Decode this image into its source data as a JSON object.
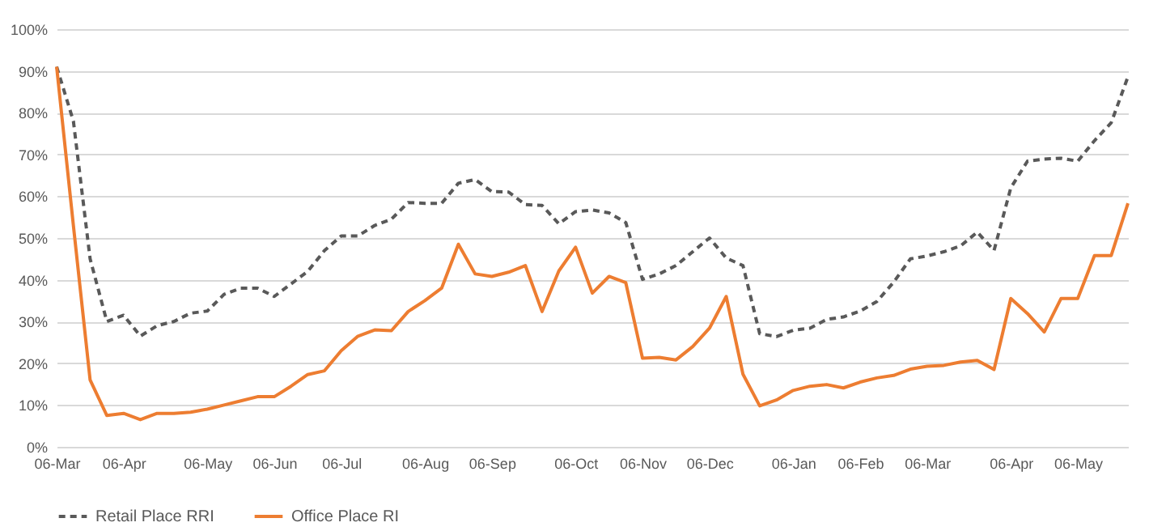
{
  "chart_data": {
    "type": "line",
    "categories": [
      "06-Mar",
      null,
      null,
      null,
      "06-Apr",
      null,
      null,
      null,
      null,
      "06-May",
      null,
      null,
      null,
      "06-Jun",
      null,
      null,
      null,
      "06-Jul",
      null,
      null,
      null,
      null,
      "06-Aug",
      null,
      null,
      null,
      "06-Sep",
      null,
      null,
      null,
      null,
      "06-Oct",
      null,
      null,
      null,
      "06-Nov",
      null,
      null,
      null,
      "06-Dec",
      null,
      null,
      null,
      null,
      "06-Jan",
      null,
      null,
      null,
      "06-Feb",
      null,
      null,
      null,
      "06-Mar",
      null,
      null,
      null,
      null,
      "06-Apr",
      null,
      null,
      null,
      "06-May",
      null,
      null,
      null
    ],
    "series": [
      {
        "name": "Retail Place RRI",
        "color": "#595959",
        "line_style": "dashed",
        "values": [
          91,
          78,
          45,
          30,
          31.5,
          26.5,
          29,
          30,
          32,
          32.5,
          36.5,
          38,
          38,
          36,
          39,
          42,
          47,
          50.5,
          50.5,
          53,
          54.5,
          58.5,
          58.3,
          58.3,
          63.1,
          64,
          61.1,
          61,
          58,
          57.8,
          53.4,
          56.3,
          56.7,
          56,
          53.7,
          40.1,
          41.4,
          43.4,
          46.7,
          50,
          45.2,
          43.4,
          27.1,
          26.4,
          27.9,
          28.4,
          30.5,
          31.1,
          32.5,
          34.8,
          39.4,
          45,
          45.7,
          46.7,
          48.1,
          51.4,
          47,
          62,
          68.4,
          68.9,
          69.1,
          68.4,
          73.3,
          77.6,
          88.6
        ]
      },
      {
        "name": "Office Place RI",
        "color": "#ed7d31",
        "line_style": "solid",
        "values": [
          91,
          53,
          16,
          7.5,
          8,
          6.5,
          8,
          8,
          8.3,
          9,
          10,
          11,
          12,
          12,
          14.5,
          17.3,
          18.2,
          23,
          26.5,
          28,
          27.8,
          32.4,
          35,
          38,
          48.5,
          41.4,
          40.8,
          41.8,
          43.4,
          32.4,
          42.1,
          47.8,
          36.8,
          40.8,
          39.3,
          21.2,
          21.4,
          20.8,
          24,
          28.4,
          36,
          17.4,
          9.8,
          11.2,
          13.5,
          14.5,
          14.9,
          14.1,
          15.5,
          16.5,
          17.1,
          18.6,
          19.3,
          19.5,
          20.3,
          20.7,
          18.5,
          35.5,
          31.9,
          27.5,
          35.5,
          35.5,
          45.8,
          45.8,
          58.3
        ]
      }
    ],
    "ylim": [
      0,
      100
    ],
    "yticks": [
      {
        "value": 0,
        "label": "0%"
      },
      {
        "value": 10,
        "label": "10%"
      },
      {
        "value": 20,
        "label": "20%"
      },
      {
        "value": 30,
        "label": "30%"
      },
      {
        "value": 40,
        "label": "40%"
      },
      {
        "value": 50,
        "label": "50%"
      },
      {
        "value": 60,
        "label": "60%"
      },
      {
        "value": 70,
        "label": "70%"
      },
      {
        "value": 80,
        "label": "80%"
      },
      {
        "value": 90,
        "label": "90%"
      },
      {
        "value": 100,
        "label": "100%"
      }
    ],
    "grid": "y",
    "legend": "bottom"
  }
}
